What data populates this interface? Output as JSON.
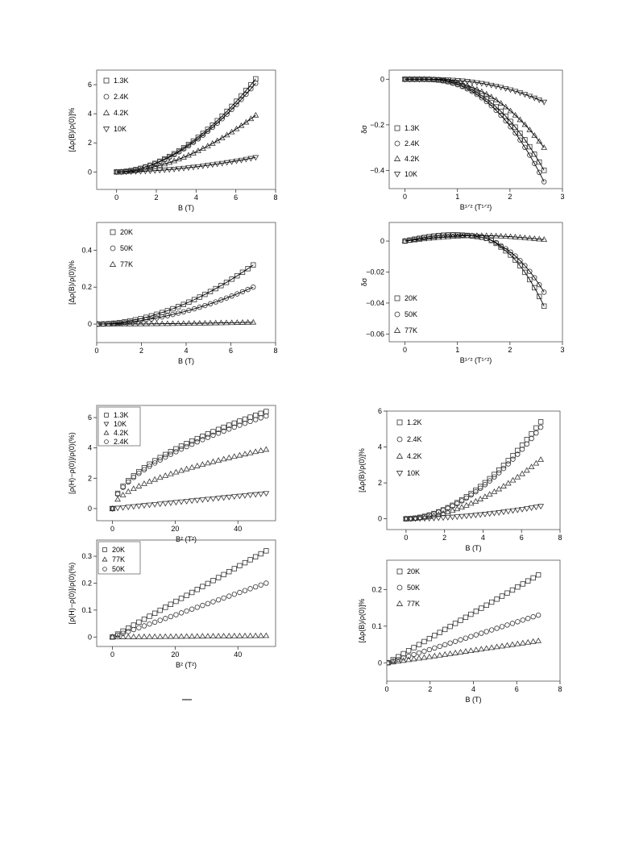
{
  "chart_data": [
    {
      "id": "a",
      "type": "scatter",
      "xlabel": "B (T)",
      "ylabel": "[Δρ(B)/ρ(0)]%",
      "xlim": [
        -1,
        8
      ],
      "ylim": [
        -1.2,
        7
      ],
      "xticks": [
        0,
        2,
        4,
        6,
        8
      ],
      "yticks": [
        0,
        2,
        4,
        6
      ],
      "legend": "top-left",
      "grid": false,
      "series": [
        {
          "name": "1.3K",
          "marker": "square",
          "curve": "quad",
          "x_end": 7,
          "y_end": 6.4
        },
        {
          "name": "2.4K",
          "marker": "circle",
          "curve": "quad",
          "x_end": 7,
          "y_end": 6.1
        },
        {
          "name": "4.2K",
          "marker": "triangle-up",
          "curve": "quad",
          "x_end": 7,
          "y_end": 3.9
        },
        {
          "name": "10K",
          "marker": "triangle-down",
          "curve": "quad",
          "x_end": 7,
          "y_end": 1.0
        }
      ],
      "fit_lines": true
    },
    {
      "id": "b",
      "type": "scatter",
      "xlabel": "B (T)",
      "ylabel": "[Δρ(B)/ρ(0)]%",
      "xlim": [
        0,
        8
      ],
      "ylim": [
        -0.1,
        0.55
      ],
      "xticks": [
        0,
        2,
        4,
        6,
        8
      ],
      "yticks": [
        0.0,
        0.2,
        0.4
      ],
      "legend": "top-left",
      "grid": false,
      "series": [
        {
          "name": "20K",
          "marker": "square",
          "curve": "quad",
          "x_end": 7,
          "y_end": 0.32
        },
        {
          "name": "50K",
          "marker": "circle",
          "curve": "quad",
          "x_end": 7,
          "y_end": 0.2
        },
        {
          "name": "77K",
          "marker": "triangle-up",
          "curve": "quad",
          "x_end": 7,
          "y_end": 0.01
        }
      ],
      "fit_lines": true
    },
    {
      "id": "c",
      "type": "scatter",
      "xlabel": "B¹ᐟ² (T¹ᐟ²)",
      "ylabel": "δσ",
      "xlim": [
        -0.3,
        3
      ],
      "ylim": [
        -0.48,
        0.04
      ],
      "xticks": [
        0,
        1,
        2,
        3
      ],
      "yticks": [
        0.0,
        -0.2,
        -0.4
      ],
      "legend": "bottom-left",
      "grid": false,
      "series": [
        {
          "name": "1.3K",
          "marker": "square",
          "curve": "drop",
          "x_end": 2.65,
          "y_end": -0.4
        },
        {
          "name": "2.4K",
          "marker": "circle",
          "curve": "drop",
          "x_end": 2.65,
          "y_end": -0.45
        },
        {
          "name": "4.2K",
          "marker": "triangle-up",
          "curve": "drop",
          "x_end": 2.65,
          "y_end": -0.3
        },
        {
          "name": "10K",
          "marker": "triangle-down",
          "curve": "drop",
          "x_end": 2.65,
          "y_end": -0.1
        }
      ],
      "fit_lines": true
    },
    {
      "id": "d",
      "type": "scatter",
      "xlabel": "B¹ᐟ² (T¹ᐟ²)",
      "ylabel": "δσ",
      "xlim": [
        -0.3,
        3
      ],
      "ylim": [
        -0.065,
        0.012
      ],
      "xticks": [
        0,
        1,
        2,
        3
      ],
      "yticks": [
        0.0,
        -0.02,
        -0.04,
        -0.06
      ],
      "legend": "bottom-left",
      "grid": false,
      "series": [
        {
          "name": "20K",
          "marker": "square",
          "curve": "bump",
          "x_end": 2.65,
          "y_end": -0.042
        },
        {
          "name": "50K",
          "marker": "circle",
          "curve": "bump",
          "x_end": 2.65,
          "y_end": -0.033
        },
        {
          "name": "77K",
          "marker": "triangle-up",
          "curve": "flat",
          "x_end": 2.65,
          "y_end": 0.001
        }
      ],
      "fit_lines": true
    },
    {
      "id": "e",
      "type": "scatter",
      "xlabel": "B² (T²)",
      "ylabel": "[ρ(H)−ρ(0)]/ρ(0)(%)",
      "xlim": [
        -5,
        52
      ],
      "ylim": [
        -0.8,
        6.8
      ],
      "xticks": [
        0,
        20,
        40
      ],
      "yticks": [
        0,
        2,
        4,
        6
      ],
      "legend": "top-left",
      "grid": false,
      "series": [
        {
          "name": "1.3K",
          "marker": "square",
          "curve": "sqrt",
          "x_end": 49,
          "y_end": 6.4
        },
        {
          "name": "10K",
          "marker": "triangle-down",
          "curve": "lin",
          "x_end": 49,
          "y_end": 1.0
        },
        {
          "name": "4.2K",
          "marker": "triangle-up",
          "curve": "sqrt",
          "x_end": 49,
          "y_end": 3.9
        },
        {
          "name": "2.4K",
          "marker": "circle",
          "curve": "sqrt",
          "x_end": 49,
          "y_end": 6.1
        }
      ],
      "fit_lines": false
    },
    {
      "id": "f",
      "type": "scatter",
      "xlabel": "B² (T²)",
      "ylabel": "[ρ(H)−ρ(0)]/ρ(0)(%)",
      "xlim": [
        -5,
        52
      ],
      "ylim": [
        -0.035,
        0.36
      ],
      "xticks": [
        0,
        20,
        40
      ],
      "yticks": [
        0.0,
        0.1,
        0.2,
        0.3
      ],
      "legend": "top-left",
      "grid": false,
      "series": [
        {
          "name": "20K",
          "marker": "square",
          "curve": "lin",
          "x_end": 49,
          "y_end": 0.32
        },
        {
          "name": "77K",
          "marker": "triangle-up",
          "curve": "lin",
          "x_end": 49,
          "y_end": 0.005
        },
        {
          "name": "50K",
          "marker": "circle",
          "curve": "lin",
          "x_end": 49,
          "y_end": 0.2
        }
      ],
      "fit_lines": false
    },
    {
      "id": "g",
      "type": "scatter",
      "xlabel": "B (T)",
      "ylabel": "[Δρ(B)/ρ(0)]%",
      "xlim": [
        -1,
        8
      ],
      "ylim": [
        -0.6,
        6
      ],
      "xticks": [
        0,
        2,
        4,
        6,
        8
      ],
      "yticks": [
        0,
        2,
        4,
        6
      ],
      "legend": "top-left",
      "grid": false,
      "series": [
        {
          "name": "1.2K",
          "marker": "square",
          "curve": "quad",
          "x_end": 7,
          "y_end": 5.4
        },
        {
          "name": "2.4K",
          "marker": "circle",
          "curve": "quad",
          "x_end": 7,
          "y_end": 5.1
        },
        {
          "name": "4.2K",
          "marker": "triangle-up",
          "curve": "quad",
          "x_end": 7,
          "y_end": 3.3
        },
        {
          "name": "10K",
          "marker": "triangle-down",
          "curve": "quad",
          "x_end": 7,
          "y_end": 0.7
        }
      ],
      "fit_lines": false
    },
    {
      "id": "h",
      "type": "scatter",
      "xlabel": "B (T)",
      "ylabel": "[Δρ(B)/ρ(0)]%",
      "xlim": [
        0,
        8
      ],
      "ylim": [
        -0.05,
        0.28
      ],
      "xticks": [
        0,
        2,
        4,
        6,
        8
      ],
      "yticks": [
        0.0,
        0.1,
        0.2
      ],
      "legend": "top-left",
      "grid": false,
      "series": [
        {
          "name": "20K",
          "marker": "square",
          "curve": "lin",
          "x_end": 7,
          "y_end": 0.24
        },
        {
          "name": "50K",
          "marker": "circle",
          "curve": "lin",
          "x_end": 7,
          "y_end": 0.13
        },
        {
          "name": "77K",
          "marker": "triangle-up",
          "curve": "lin",
          "x_end": 7,
          "y_end": 0.06
        }
      ],
      "fit_lines": false
    }
  ]
}
